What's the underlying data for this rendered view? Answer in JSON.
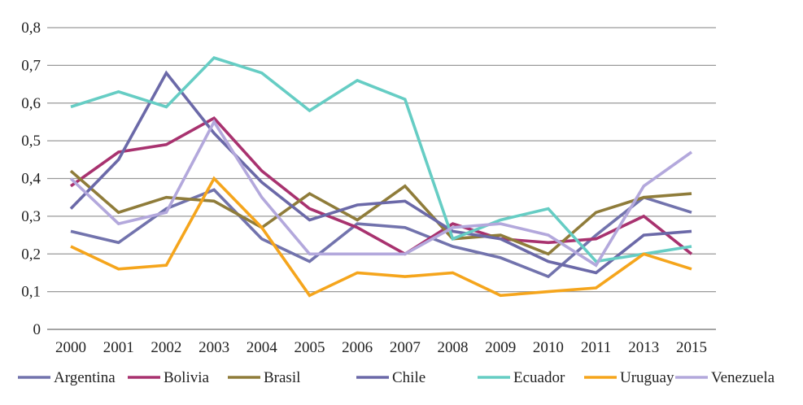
{
  "chart_data": {
    "type": "line",
    "categories": [
      "2000",
      "2001",
      "2002",
      "2003",
      "2004",
      "2005",
      "2006",
      "2007",
      "2008",
      "2009",
      "2010",
      "2011",
      "2013",
      "2015"
    ],
    "ylim": [
      0,
      0.8
    ],
    "yticks": [
      "0",
      "0,1",
      "0,2",
      "0,3",
      "0,4",
      "0,5",
      "0,6",
      "0,7",
      "0,8"
    ],
    "grid": true,
    "legend_position": "bottom",
    "series": [
      {
        "name": "Argentina",
        "color": "#7273ad",
        "values": [
          0.26,
          0.23,
          0.32,
          0.37,
          0.24,
          0.18,
          0.28,
          0.27,
          0.22,
          0.19,
          0.14,
          0.25,
          0.35,
          0.31
        ]
      },
      {
        "name": "Bolivia",
        "color": "#a8326f",
        "values": [
          0.38,
          0.47,
          0.49,
          0.56,
          0.42,
          0.32,
          0.27,
          0.2,
          0.28,
          0.24,
          0.23,
          0.24,
          0.3,
          0.2
        ]
      },
      {
        "name": "Brasil",
        "color": "#8f7c3a",
        "values": [
          0.42,
          0.31,
          0.35,
          0.34,
          0.27,
          0.36,
          0.29,
          0.38,
          0.24,
          0.25,
          0.2,
          0.31,
          0.35,
          0.36
        ]
      },
      {
        "name": "Chile",
        "color": "#6b69a8",
        "values": [
          0.32,
          0.45,
          0.68,
          0.52,
          0.39,
          0.29,
          0.33,
          0.34,
          0.26,
          0.24,
          0.18,
          0.15,
          0.25,
          0.26
        ]
      },
      {
        "name": "Ecuador",
        "color": "#66cdc4",
        "values": [
          0.59,
          0.63,
          0.59,
          0.72,
          0.68,
          0.58,
          0.66,
          0.61,
          0.24,
          0.29,
          0.32,
          0.18,
          0.2,
          0.22
        ]
      },
      {
        "name": "Uruguay",
        "color": "#f5a51c",
        "values": [
          0.22,
          0.16,
          0.17,
          0.4,
          0.27,
          0.09,
          0.15,
          0.14,
          0.15,
          0.09,
          0.1,
          0.11,
          0.2,
          0.16
        ]
      },
      {
        "name": "Venezuela",
        "color": "#b3a8dc",
        "values": [
          0.4,
          0.28,
          0.31,
          0.55,
          0.35,
          0.2,
          0.2,
          0.2,
          0.27,
          0.28,
          0.25,
          0.17,
          0.38,
          0.47
        ]
      }
    ]
  }
}
